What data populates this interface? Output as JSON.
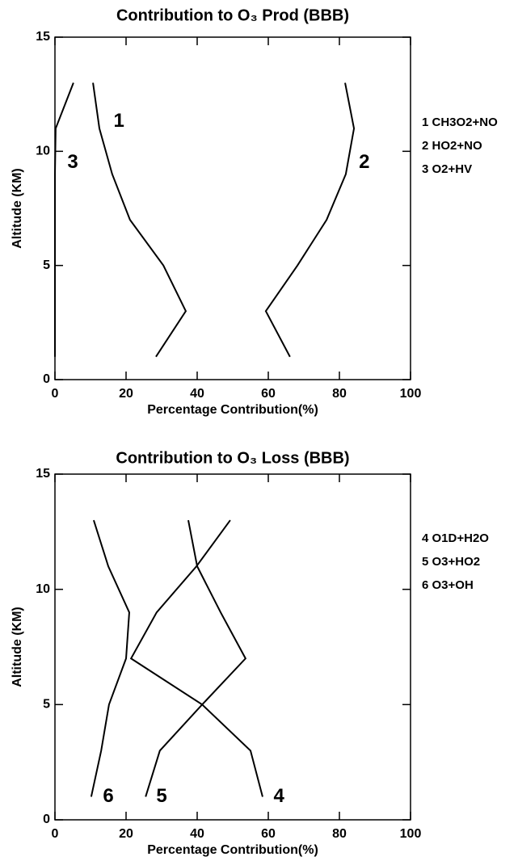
{
  "chart_data": [
    {
      "type": "line",
      "title": "Contribution to O₃ Prod (BBB)",
      "x_label": "Percentage Contribution(%)",
      "y_label": "Altitude (KM)",
      "xlim": [
        0,
        100
      ],
      "xticks": [
        0,
        20,
        40,
        60,
        80,
        100
      ],
      "ylim": [
        0,
        15
      ],
      "yticks": [
        0,
        5,
        10,
        15
      ],
      "color": "#000000",
      "series": [
        {
          "name": "1 CH3O2+NO",
          "tag": "1",
          "y": [
            13,
            11,
            9,
            7,
            5,
            3,
            1
          ],
          "x": [
            10.7,
            12.5,
            16.1,
            21.1,
            30.5,
            36.8,
            28.4
          ]
        },
        {
          "name": "2 HO2+NO",
          "tag": "2",
          "y": [
            13,
            11,
            9,
            7,
            5,
            3,
            1
          ],
          "x": [
            81.6,
            84.1,
            81.8,
            76.4,
            68.2,
            59.3,
            66.1
          ]
        },
        {
          "name": "3 O2+HV",
          "tag": "3",
          "y": [
            13,
            11,
            9,
            7,
            5,
            3,
            1
          ],
          "x": [
            5.2,
            0.2,
            0,
            0,
            0,
            0,
            0
          ]
        }
      ]
    },
    {
      "type": "line",
      "title": "Contribution to O₃ Loss (BBB)",
      "x_label": "Percentage Contribution(%)",
      "y_label": "Altitude (KM)",
      "xlim": [
        0,
        100
      ],
      "xticks": [
        0,
        20,
        40,
        60,
        80,
        100
      ],
      "ylim": [
        0,
        15
      ],
      "yticks": [
        0,
        5,
        10,
        15
      ],
      "color": "#000000",
      "series": [
        {
          "name": "4 O1D+H2O",
          "tag": "4",
          "y": [
            13,
            11,
            9,
            7,
            5,
            3,
            1
          ],
          "x": [
            49.3,
            39.8,
            28.6,
            21.4,
            41.4,
            55,
            58.4
          ]
        },
        {
          "name": "5 O3+HO2",
          "tag": "5",
          "y": [
            13,
            11,
            9,
            7,
            5,
            3,
            1
          ],
          "x": [
            37.5,
            40,
            46.6,
            53.6,
            41.4,
            29.5,
            25.5
          ]
        },
        {
          "name": "6 O3+OH",
          "tag": "6",
          "y": [
            13,
            11,
            9,
            7,
            5,
            3,
            1
          ],
          "x": [
            10.9,
            15,
            20.9,
            20,
            15.2,
            13,
            10.2
          ]
        }
      ]
    }
  ]
}
